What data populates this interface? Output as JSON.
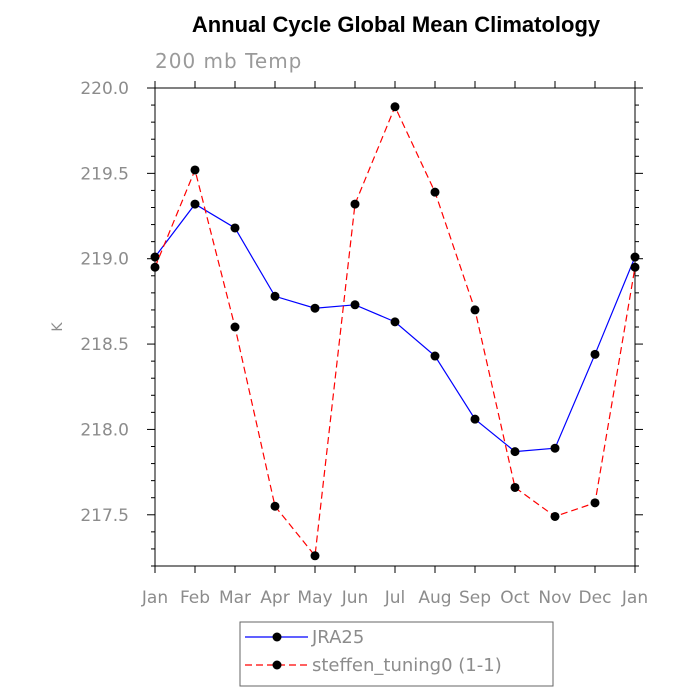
{
  "chart_data": {
    "type": "line",
    "title": "Annual Cycle Global Mean Climatology",
    "subtitle": "200 mb Temp",
    "xlabel": "",
    "ylabel": "K",
    "categories": [
      "Jan",
      "Feb",
      "Mar",
      "Apr",
      "May",
      "Jun",
      "Jul",
      "Aug",
      "Sep",
      "Oct",
      "Nov",
      "Dec",
      "Jan"
    ],
    "ylim": [
      217.2,
      220.0
    ],
    "yticks": [
      "220.0",
      "219.5",
      "219.0",
      "218.5",
      "218.0",
      "217.5"
    ],
    "grid": false,
    "legend_position": "bottom",
    "series": [
      {
        "name": "JRA25",
        "color": "#0000ff",
        "line_style": "solid",
        "marker": "circle",
        "values": [
          219.01,
          219.32,
          219.18,
          218.78,
          218.71,
          218.73,
          218.63,
          218.43,
          218.06,
          217.87,
          217.89,
          218.44,
          219.01
        ]
      },
      {
        "name": "steffen_tuning0 (1-1)",
        "color": "#ff0000",
        "line_style": "dashed",
        "marker": "circle",
        "values": [
          218.95,
          219.52,
          218.6,
          217.55,
          217.26,
          219.32,
          219.89,
          219.39,
          218.7,
          217.66,
          217.49,
          217.57,
          218.95
        ]
      }
    ]
  }
}
